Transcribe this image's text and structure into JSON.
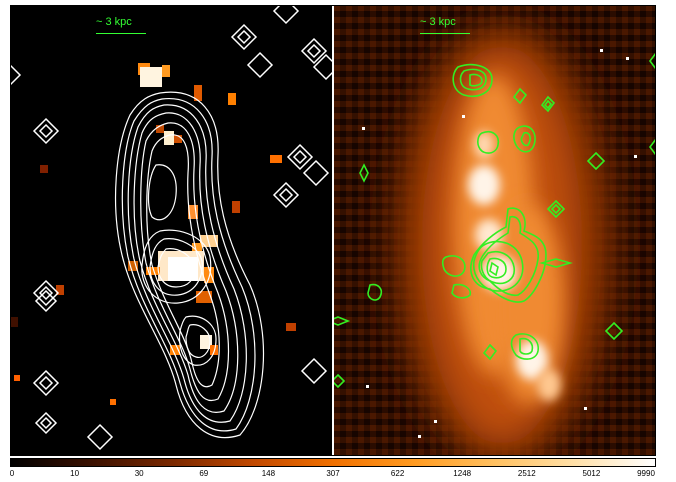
{
  "left_panel": {
    "scale_label": "~ 3 kpc",
    "background": "#000000",
    "contour_color": "#ffffff"
  },
  "right_panel": {
    "scale_label": "~ 3 kpc",
    "contour_color": "#33ff33"
  },
  "colorbar": {
    "ticks": [
      "0",
      "10",
      "30",
      "69",
      "148",
      "307",
      "622",
      "1248",
      "2512",
      "5012",
      "9990"
    ],
    "colors": [
      "#000000",
      "#3a1000",
      "#7a2800",
      "#c04800",
      "#f07000",
      "#ff9a20",
      "#ffc060",
      "#ffe0a8",
      "#ffffff"
    ]
  }
}
